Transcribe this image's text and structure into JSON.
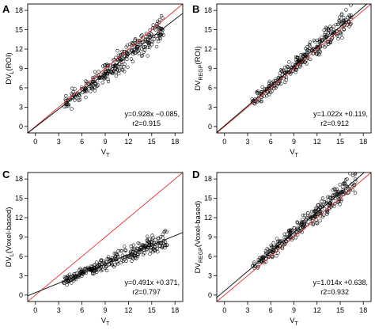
{
  "chart_data": [
    {
      "type": "scatter",
      "letter": "A",
      "xlabel": "V",
      "xlabel_sub": "T",
      "ylabel": "DV",
      "ylabel_sub": "L",
      "ylabel_suffix": "(ROI)",
      "xlim": [
        -1,
        19
      ],
      "ylim": [
        -1,
        19
      ],
      "xticks": [
        0,
        3,
        6,
        9,
        12,
        15,
        18
      ],
      "yticks": [
        0,
        3,
        6,
        9,
        12,
        15,
        18
      ],
      "equation_line1": "y=0.928x −0.085,",
      "equation_line2": "r2=0.915",
      "fit": {
        "slope": 0.928,
        "intercept": -0.085
      },
      "identity_line_color": "#e03030",
      "cloud": {
        "n": 300,
        "xmin": 3.5,
        "xmax": 16.5,
        "noise": 0.9,
        "seed": 11
      }
    },
    {
      "type": "scatter",
      "letter": "B",
      "xlabel": "V",
      "xlabel_sub": "T",
      "ylabel": "DV",
      "ylabel_sub": "REGP",
      "ylabel_suffix": "(ROI)",
      "xlim": [
        -1,
        19
      ],
      "ylim": [
        -1,
        19
      ],
      "xticks": [
        0,
        3,
        6,
        9,
        12,
        15,
        18
      ],
      "yticks": [
        0,
        3,
        6,
        9,
        12,
        15,
        18
      ],
      "equation_line1": "y=1.022x +0.119,",
      "equation_line2": "r2=0.912",
      "fit": {
        "slope": 1.022,
        "intercept": 0.119
      },
      "identity_line_color": "#e03030",
      "cloud": {
        "n": 300,
        "xmin": 3.5,
        "xmax": 16.5,
        "noise": 0.8,
        "seed": 23
      }
    },
    {
      "type": "scatter",
      "letter": "C",
      "xlabel": "V",
      "xlabel_sub": "T",
      "ylabel": "DV",
      "ylabel_sub": "L",
      "ylabel_suffix": "(Voxel-based)",
      "xlim": [
        -1,
        19
      ],
      "ylim": [
        -1,
        19
      ],
      "xticks": [
        0,
        3,
        6,
        9,
        12,
        15,
        18
      ],
      "yticks": [
        0,
        3,
        6,
        9,
        12,
        15,
        18
      ],
      "equation_line1": "y=0.491x +0.371,",
      "equation_line2": "r2=0.797",
      "fit": {
        "slope": 0.491,
        "intercept": 0.371
      },
      "identity_line_color": "#e03030",
      "cloud": {
        "n": 300,
        "xmin": 3.5,
        "xmax": 17,
        "noise": 0.6,
        "seed": 37
      }
    },
    {
      "type": "scatter",
      "letter": "D",
      "xlabel": "V",
      "xlabel_sub": "T",
      "ylabel": "DV",
      "ylabel_sub": "REGP",
      "ylabel_suffix": "(Voxel-based)",
      "xlim": [
        -1,
        19
      ],
      "ylim": [
        -1,
        19
      ],
      "xticks": [
        0,
        3,
        6,
        9,
        12,
        15,
        18
      ],
      "yticks": [
        0,
        3,
        6,
        9,
        12,
        15,
        18
      ],
      "equation_line1": "y=1.014x +0.638,",
      "equation_line2": "r2=0.932",
      "fit": {
        "slope": 1.014,
        "intercept": 0.638
      },
      "identity_line_color": "#e03030",
      "cloud": {
        "n": 300,
        "xmin": 3.5,
        "xmax": 17,
        "noise": 0.8,
        "seed": 53
      }
    }
  ]
}
